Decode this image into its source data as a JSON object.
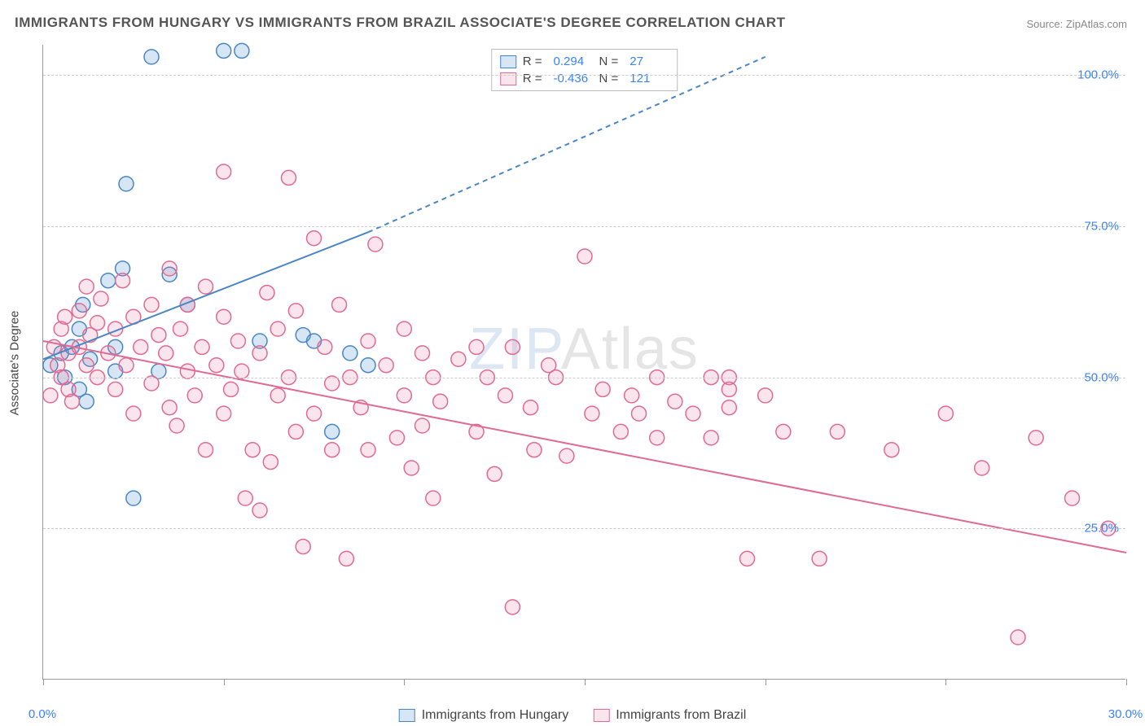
{
  "title": "IMMIGRANTS FROM HUNGARY VS IMMIGRANTS FROM BRAZIL ASSOCIATE'S DEGREE CORRELATION CHART",
  "source": "Source: ZipAtlas.com",
  "ylabel": "Associate's Degree",
  "watermark_prefix": "ZIP",
  "watermark_suffix": "Atlas",
  "chart": {
    "type": "scatter",
    "xlim": [
      0,
      30
    ],
    "ylim": [
      0,
      105
    ],
    "xtick_positions": [
      0,
      5,
      10,
      15,
      20,
      25,
      30
    ],
    "xtick_labels": [
      "0.0%",
      "",
      "",
      "",
      "",
      "",
      "30.0%"
    ],
    "ytick_positions": [
      25,
      50,
      75,
      100
    ],
    "ytick_labels": [
      "25.0%",
      "50.0%",
      "75.0%",
      "100.0%"
    ],
    "grid_color": "#cccccc",
    "background_color": "#ffffff",
    "axis_color": "#999999",
    "tick_label_color": "#3b82f6",
    "marker_radius": 9,
    "marker_stroke_width": 1.5,
    "line_width": 2
  },
  "series": [
    {
      "label": "Immigrants from Hungary",
      "color": "#5b9bd5",
      "fill": "rgba(91,155,213,0.25)",
      "stroke": "#4a86c5",
      "R_label": "R =",
      "R": "0.294",
      "N_label": "N =",
      "N": "27",
      "regression": {
        "x1": 0,
        "y1": 53,
        "x2": 9,
        "y2": 74,
        "dash_x2": 20,
        "dash_y2": 103
      },
      "points": [
        [
          0.2,
          52
        ],
        [
          0.5,
          54
        ],
        [
          0.6,
          50
        ],
        [
          0.8,
          55
        ],
        [
          1.0,
          48
        ],
        [
          1.0,
          58
        ],
        [
          1.1,
          62
        ],
        [
          1.2,
          46
        ],
        [
          1.3,
          53
        ],
        [
          1.8,
          66
        ],
        [
          2.0,
          55
        ],
        [
          2.0,
          51
        ],
        [
          2.2,
          68
        ],
        [
          2.3,
          82
        ],
        [
          2.5,
          30
        ],
        [
          3.0,
          103
        ],
        [
          3.2,
          51
        ],
        [
          3.5,
          67
        ],
        [
          4.0,
          62
        ],
        [
          5.0,
          104
        ],
        [
          5.5,
          104
        ],
        [
          6.0,
          56
        ],
        [
          7.2,
          57
        ],
        [
          7.5,
          56
        ],
        [
          8.0,
          41
        ],
        [
          8.5,
          54
        ],
        [
          9.0,
          52
        ]
      ]
    },
    {
      "label": "Immigrants from Brazil",
      "color": "#e87ba0",
      "fill": "rgba(232,123,160,0.20)",
      "stroke": "#e06a93",
      "R_label": "R =",
      "R": "-0.436",
      "N_label": "N =",
      "N": "121",
      "regression": {
        "x1": 0,
        "y1": 56,
        "x2": 30,
        "y2": 21
      },
      "points": [
        [
          0.2,
          47
        ],
        [
          0.3,
          55
        ],
        [
          0.4,
          52
        ],
        [
          0.5,
          58
        ],
        [
          0.5,
          50
        ],
        [
          0.6,
          60
        ],
        [
          0.7,
          54
        ],
        [
          0.7,
          48
        ],
        [
          0.8,
          46
        ],
        [
          1.0,
          61
        ],
        [
          1.0,
          55
        ],
        [
          1.2,
          52
        ],
        [
          1.2,
          65
        ],
        [
          1.3,
          57
        ],
        [
          1.5,
          50
        ],
        [
          1.5,
          59
        ],
        [
          1.6,
          63
        ],
        [
          1.8,
          54
        ],
        [
          2.0,
          58
        ],
        [
          2.0,
          48
        ],
        [
          2.2,
          66
        ],
        [
          2.3,
          52
        ],
        [
          2.5,
          60
        ],
        [
          2.5,
          44
        ],
        [
          2.7,
          55
        ],
        [
          3.0,
          62
        ],
        [
          3.0,
          49
        ],
        [
          3.2,
          57
        ],
        [
          3.4,
          54
        ],
        [
          3.5,
          68
        ],
        [
          3.5,
          45
        ],
        [
          3.7,
          42
        ],
        [
          3.8,
          58
        ],
        [
          4.0,
          51
        ],
        [
          4.0,
          62
        ],
        [
          4.2,
          47
        ],
        [
          4.4,
          55
        ],
        [
          4.5,
          65
        ],
        [
          4.5,
          38
        ],
        [
          4.8,
          52
        ],
        [
          5.0,
          60
        ],
        [
          5.0,
          44
        ],
        [
          5.0,
          84
        ],
        [
          5.2,
          48
        ],
        [
          5.4,
          56
        ],
        [
          5.5,
          51
        ],
        [
          5.6,
          30
        ],
        [
          5.8,
          38
        ],
        [
          6.0,
          28
        ],
        [
          6.0,
          54
        ],
        [
          6.2,
          64
        ],
        [
          6.3,
          36
        ],
        [
          6.5,
          47
        ],
        [
          6.5,
          58
        ],
        [
          6.8,
          50
        ],
        [
          6.8,
          83
        ],
        [
          7.0,
          41
        ],
        [
          7.0,
          61
        ],
        [
          7.2,
          22
        ],
        [
          7.5,
          73
        ],
        [
          7.5,
          44
        ],
        [
          7.8,
          55
        ],
        [
          8.0,
          38
        ],
        [
          8.0,
          49
        ],
        [
          8.2,
          62
        ],
        [
          8.4,
          20
        ],
        [
          8.5,
          50
        ],
        [
          8.8,
          45
        ],
        [
          9.0,
          38
        ],
        [
          9.0,
          56
        ],
        [
          9.2,
          72
        ],
        [
          9.5,
          52
        ],
        [
          9.8,
          40
        ],
        [
          10.0,
          47
        ],
        [
          10.0,
          58
        ],
        [
          10.2,
          35
        ],
        [
          10.5,
          54
        ],
        [
          10.5,
          42
        ],
        [
          10.8,
          50
        ],
        [
          10.8,
          30
        ],
        [
          11.0,
          46
        ],
        [
          11.5,
          53
        ],
        [
          12.0,
          41
        ],
        [
          12.0,
          55
        ],
        [
          12.3,
          50
        ],
        [
          12.5,
          34
        ],
        [
          12.8,
          47
        ],
        [
          13.0,
          55
        ],
        [
          13.0,
          12
        ],
        [
          13.5,
          45
        ],
        [
          13.6,
          38
        ],
        [
          14.0,
          52
        ],
        [
          14.2,
          50
        ],
        [
          14.5,
          37
        ],
        [
          15.0,
          70
        ],
        [
          15.2,
          44
        ],
        [
          15.5,
          48
        ],
        [
          16.0,
          41
        ],
        [
          16.3,
          47
        ],
        [
          16.5,
          44
        ],
        [
          17.0,
          50
        ],
        [
          17.0,
          40
        ],
        [
          17.5,
          46
        ],
        [
          18.0,
          44
        ],
        [
          18.5,
          50
        ],
        [
          18.5,
          40
        ],
        [
          19.0,
          45
        ],
        [
          19.0,
          48
        ],
        [
          19.0,
          50
        ],
        [
          19.5,
          20
        ],
        [
          20.0,
          47
        ],
        [
          20.5,
          41
        ],
        [
          21.5,
          20
        ],
        [
          22.0,
          41
        ],
        [
          23.5,
          38
        ],
        [
          25.0,
          44
        ],
        [
          26.0,
          35
        ],
        [
          27.0,
          7
        ],
        [
          27.5,
          40
        ],
        [
          28.5,
          30
        ],
        [
          29.5,
          25
        ]
      ]
    }
  ]
}
